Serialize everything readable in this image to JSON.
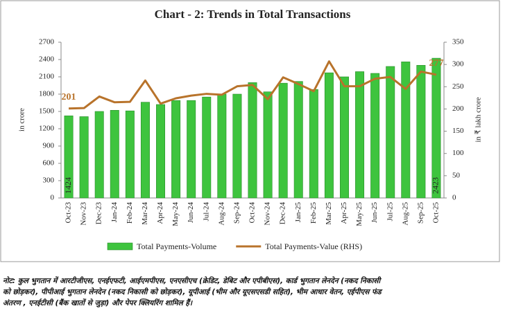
{
  "chart_data": {
    "type": "bar-line",
    "title": "Chart - 2: Trends in Total Transactions",
    "y_label": "in crore",
    "y2_label": "in ₹ lakh crore",
    "categories": [
      "Oct-23",
      "Nov-23",
      "Dec-23",
      "Jan-24",
      "Feb-24",
      "Mar-24",
      "Apr-24",
      "May-24",
      "Jun-24",
      "Jul-24",
      "Aug-24",
      "Sep-24",
      "Oct-24",
      "Nov-24",
      "Dec-24",
      "Jan-25",
      "Feb-25",
      "Mar-25",
      "Apr-25",
      "May-25",
      "Jun-25",
      "Jul-25",
      "Aug-25",
      "Sep-25",
      "Oct-25"
    ],
    "ylim": [
      0,
      2700
    ],
    "yticks": [
      0,
      300,
      600,
      900,
      1200,
      1500,
      1800,
      2100,
      2400,
      2700
    ],
    "y2lim": [
      0,
      350
    ],
    "y2ticks": [
      0,
      50,
      100,
      150,
      200,
      250,
      300,
      350
    ],
    "series": [
      {
        "name": "Total Payments-Volume",
        "type": "bar",
        "color": "#3ec43e",
        "data_labels": [
          0,
          24
        ],
        "values": [
          1424,
          1410,
          1500,
          1520,
          1510,
          1660,
          1620,
          1690,
          1690,
          1750,
          1800,
          1800,
          2000,
          1840,
          1990,
          2020,
          1880,
          2170,
          2100,
          2190,
          2160,
          2280,
          2360,
          2300,
          2423
        ]
      },
      {
        "name": "Total Payments-Value (RHS)",
        "type": "line",
        "axis": "y2",
        "color": "#b8732b",
        "data_labels": [
          0,
          24
        ],
        "values": [
          201,
          202,
          228,
          215,
          216,
          264,
          212,
          224,
          230,
          234,
          232,
          251,
          254,
          222,
          271,
          256,
          240,
          307,
          251,
          251,
          268,
          272,
          245,
          284,
          277
        ]
      }
    ]
  },
  "note": {
    "lines": [
      "नोट: कुल भुगतान में आरटीजीएस, एनईएफटी, आईएमपीएस, एनएसीएच (क्रेडिट, डेबिट और एपीबीएस), कार्ड भुगतान लेनदेन (नकद निकासी",
      "को छोड़कर), पीपीआई भुगतान लेनदेन (नकद निकासी को छोड़कर), यूपीआई (भीम और यूएसएसडी सहित), भीम आधार वेतन, एईपीएस फंड",
      "अंतरण , एनईटीसी (बैंक खातों से जुड़ा) और पेपर क्लियरिंग शामिल हैं।"
    ]
  }
}
